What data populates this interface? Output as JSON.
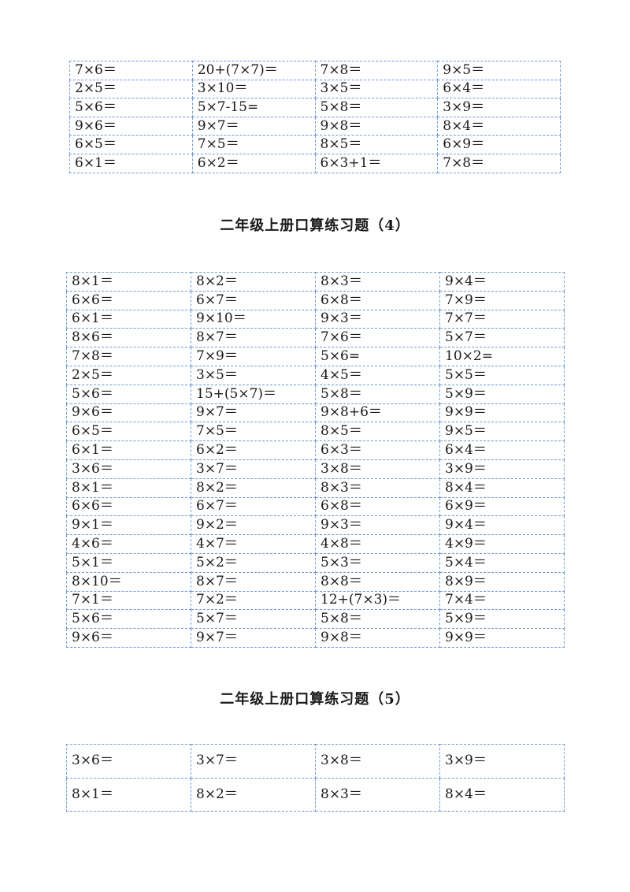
{
  "section3_tail": {
    "rows": [
      [
        "7×6＝",
        "20+(7×7)＝",
        "7×8＝",
        "9×5＝"
      ],
      [
        "2×5＝",
        "3×10＝",
        "3×5＝",
        "6×4＝"
      ],
      [
        "5×6＝",
        "5×7-15=",
        "5×8＝",
        "3×9＝"
      ],
      [
        "9×6＝",
        "9×7＝",
        "9×8＝",
        "8×4＝"
      ],
      [
        "6×5＝",
        "7×5＝",
        "8×5＝",
        "6×9＝"
      ],
      [
        "6×1＝",
        "6×2＝",
        "6×3+1＝",
        "7×8＝"
      ]
    ]
  },
  "section4": {
    "title": "二年级上册口算练习题（4）",
    "rows": [
      [
        "8×1＝",
        "8×2＝",
        "8×3＝",
        "9×4＝"
      ],
      [
        "6×6＝",
        "6×7＝",
        "6×8＝",
        "7×9＝"
      ],
      [
        "6×1＝",
        "9×10＝",
        "9×3＝",
        "7×7＝"
      ],
      [
        "8×6＝",
        "8×7＝",
        "7×6＝",
        "5×7＝"
      ],
      [
        "7×8＝",
        "7×9＝",
        "5×6=",
        "10×2="
      ],
      [
        "2×5＝",
        "3×5＝",
        "4×5＝",
        "5×5＝"
      ],
      [
        "5×6＝",
        "15+(5×7)＝",
        "5×8＝",
        "5×9＝"
      ],
      [
        "9×6＝",
        "9×7＝",
        "9×8+6＝",
        "9×9＝"
      ],
      [
        "6×5＝",
        "7×5＝",
        "8×5＝",
        "9×5＝"
      ],
      [
        "6×1＝",
        "6×2＝",
        "6×3＝",
        "6×4＝"
      ],
      [
        "3×6＝",
        "3×7＝",
        "3×8＝",
        "3×9＝"
      ],
      [
        "8×1＝",
        "8×2＝",
        "8×3＝",
        "8×4＝"
      ],
      [
        "6×6＝",
        "6×7＝",
        "6×8＝",
        "6×9＝"
      ],
      [
        "9×1＝",
        "9×2＝",
        "9×3＝",
        "9×4＝"
      ],
      [
        "4×6＝",
        "4×7＝",
        "4×8＝",
        "4×9＝"
      ],
      [
        "5×1＝",
        "5×2＝",
        "5×3＝",
        "5×4＝"
      ],
      [
        "8×10＝",
        "8×7＝",
        "8×8＝",
        "8×9＝"
      ],
      [
        "7×1＝",
        "7×2＝",
        "12+(7×3)＝",
        "7×4＝"
      ],
      [
        "5×6＝",
        "5×7＝",
        "5×8＝",
        "5×9＝"
      ],
      [
        "9×6＝",
        "9×7＝",
        "9×8＝",
        "9×9＝"
      ]
    ]
  },
  "section5": {
    "title": "二年级上册口算练习题（5）",
    "rows": [
      [
        "3×6＝",
        "3×7＝",
        "3×8＝",
        "3×9＝"
      ],
      [
        "8×1＝",
        "8×2＝",
        "8×3＝",
        "8×4＝"
      ]
    ]
  }
}
